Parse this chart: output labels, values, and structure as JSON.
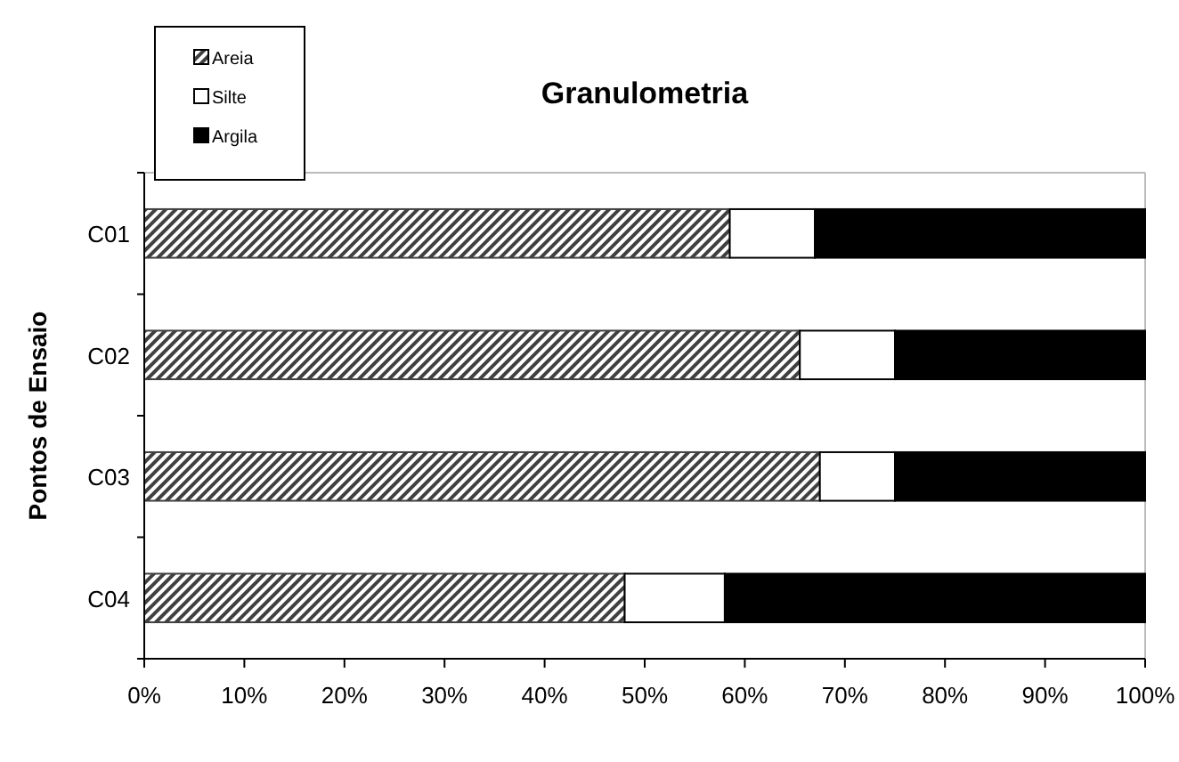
{
  "chart_data": {
    "type": "bar",
    "title": "Granulometria",
    "ylabel": "Pontos de Ensaio",
    "orientation": "horizontal",
    "stacked": true,
    "categories": [
      "C01",
      "C02",
      "C03",
      "C04"
    ],
    "series": [
      {
        "name": "Areia",
        "color": "#404040",
        "values": [
          58.5,
          65.5,
          67.5,
          48
        ]
      },
      {
        "name": "Silte",
        "color": "#ffffff",
        "values": [
          8.5,
          9.5,
          7.5,
          10
        ]
      },
      {
        "name": "Argila",
        "color": "#000000",
        "values": [
          33,
          25,
          25,
          42
        ]
      }
    ],
    "xlim": [
      0,
      100
    ],
    "xticks": [
      {
        "value": 0,
        "label": "0%"
      },
      {
        "value": 10,
        "label": "10%"
      },
      {
        "value": 20,
        "label": "20%"
      },
      {
        "value": 30,
        "label": "30%"
      },
      {
        "value": 40,
        "label": "40%"
      },
      {
        "value": 50,
        "label": "50%"
      },
      {
        "value": 60,
        "label": "60%"
      },
      {
        "value": 70,
        "label": "70%"
      },
      {
        "value": 80,
        "label": "80%"
      },
      {
        "value": 90,
        "label": "90%"
      },
      {
        "value": 100,
        "label": "100%"
      }
    ],
    "legend": "top left",
    "grid": false
  }
}
